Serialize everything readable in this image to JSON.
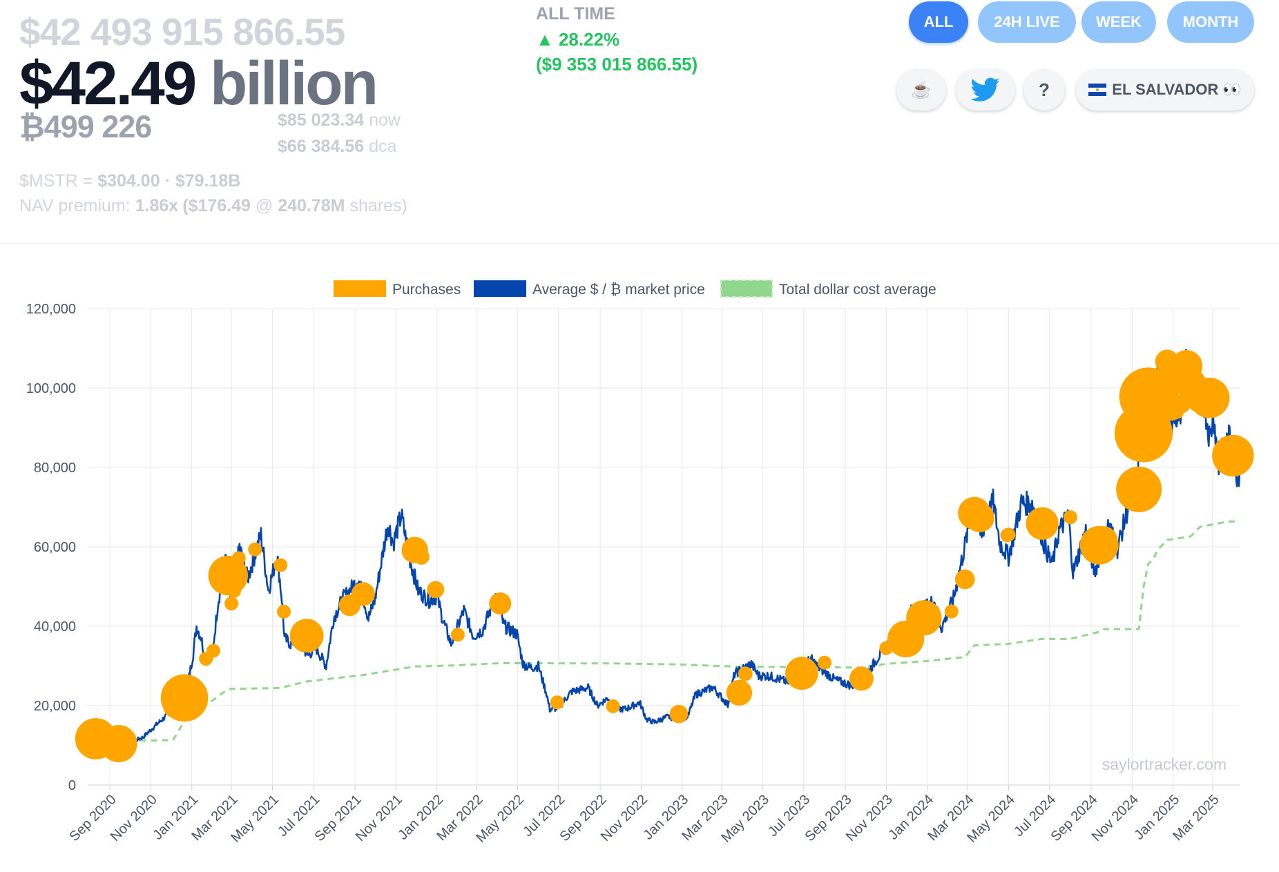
{
  "header": {
    "total_value_exact": "$42 493 915 866.55",
    "total_value_short_number": "$42.49",
    "total_value_short_unit": "billion",
    "btc_held": "₿499 226",
    "btc_price_now": "$85 023.34",
    "btc_price_now_label": "now",
    "btc_price_dca": "$66 384.56",
    "btc_price_dca_label": "dca",
    "mstr_label": "$MSTR =",
    "mstr_price": "$304.00",
    "mstr_sep": "·",
    "mstr_mcap": "$79.18B",
    "nav_label": "NAV premium:",
    "nav_premium": "1.86x",
    "nav_paren_open": "(",
    "nav_per_share": "$176.49",
    "nav_at": "@",
    "nav_shares": "240.78M",
    "nav_shares_label": "shares)"
  },
  "all_time": {
    "title": "ALL TIME",
    "arrow": "▲",
    "percent": "28.22%",
    "usd": "($9 353 015 866.55)"
  },
  "range_tabs": [
    {
      "label": "ALL",
      "active": true
    },
    {
      "label": "24H LIVE",
      "active": false
    },
    {
      "label": "WEEK",
      "active": false
    },
    {
      "label": "MONTH",
      "active": false
    }
  ],
  "links": {
    "coffee": "☕",
    "help": "?",
    "country_label": "EL SALVADOR",
    "eyes": "👀"
  },
  "colors": {
    "accent": "#3b82f6",
    "inactive_tab": "#93c5fd",
    "purchases": "#ffa500",
    "price_line": "#0645ad",
    "dca_line": "#90d68c",
    "gain": "#22c55e",
    "twitter": "#1d9bf0"
  },
  "chart_data": {
    "type": "line",
    "title": "",
    "watermark": "saylortracker.com",
    "legend": [
      "Purchases",
      "Average $ / ₿ market price",
      "Total dollar cost average"
    ],
    "legend_position": "top",
    "grid": true,
    "ylim": [
      0,
      120000
    ],
    "y_ticks": [
      "0",
      "20,000",
      "40,000",
      "60,000",
      "80,000",
      "100,000",
      "120,000"
    ],
    "x_range": [
      "2020-07-30",
      "2025-04-10"
    ],
    "x_ticks": [
      {
        "date": "2020-09-01",
        "label": "Sep 2020"
      },
      {
        "date": "2020-11-01",
        "label": "Nov 2020"
      },
      {
        "date": "2021-01-01",
        "label": "Jan 2021"
      },
      {
        "date": "2021-03-01",
        "label": "Mar 2021"
      },
      {
        "date": "2021-05-01",
        "label": "May 2021"
      },
      {
        "date": "2021-07-01",
        "label": "Jul 2021"
      },
      {
        "date": "2021-09-01",
        "label": "Sep 2021"
      },
      {
        "date": "2021-11-01",
        "label": "Nov 2021"
      },
      {
        "date": "2022-01-01",
        "label": "Jan 2022"
      },
      {
        "date": "2022-03-01",
        "label": "Mar 2022"
      },
      {
        "date": "2022-05-01",
        "label": "May 2022"
      },
      {
        "date": "2022-07-01",
        "label": "Jul 2022"
      },
      {
        "date": "2022-09-01",
        "label": "Sep 2022"
      },
      {
        "date": "2022-11-01",
        "label": "Nov 2022"
      },
      {
        "date": "2023-01-01",
        "label": "Jan 2023"
      },
      {
        "date": "2023-03-01",
        "label": "Mar 2023"
      },
      {
        "date": "2023-05-01",
        "label": "May 2023"
      },
      {
        "date": "2023-07-01",
        "label": "Jul 2023"
      },
      {
        "date": "2023-09-01",
        "label": "Sep 2023"
      },
      {
        "date": "2023-11-01",
        "label": "Nov 2023"
      },
      {
        "date": "2024-01-01",
        "label": "Jan 2024"
      },
      {
        "date": "2024-03-01",
        "label": "Mar 2024"
      },
      {
        "date": "2024-05-01",
        "label": "May 2024"
      },
      {
        "date": "2024-07-01",
        "label": "Jul 2024"
      },
      {
        "date": "2024-09-01",
        "label": "Sep 2024"
      },
      {
        "date": "2024-11-01",
        "label": "Nov 2024"
      },
      {
        "date": "2025-01-01",
        "label": "Jan 2025"
      },
      {
        "date": "2025-03-01",
        "label": "Mar 2025"
      }
    ],
    "price_series": [
      [
        "2020-09-10",
        10400
      ],
      [
        "2020-10-01",
        10700
      ],
      [
        "2020-10-20",
        12000
      ],
      [
        "2020-11-10",
        15300
      ],
      [
        "2020-11-28",
        18000
      ],
      [
        "2020-12-16",
        21000
      ],
      [
        "2020-12-24",
        23500
      ],
      [
        "2021-01-03",
        33000
      ],
      [
        "2021-01-08",
        40000
      ],
      [
        "2021-01-15",
        37000
      ],
      [
        "2021-01-22",
        31000
      ],
      [
        "2021-02-01",
        33500
      ],
      [
        "2021-02-09",
        46000
      ],
      [
        "2021-02-21",
        57000
      ],
      [
        "2021-02-28",
        45000
      ],
      [
        "2021-03-13",
        60000
      ],
      [
        "2021-03-25",
        52000
      ],
      [
        "2021-04-14",
        63000
      ],
      [
        "2021-04-25",
        49000
      ],
      [
        "2021-05-08",
        58000
      ],
      [
        "2021-05-15",
        47000
      ],
      [
        "2021-05-19",
        37000
      ],
      [
        "2021-05-28",
        35500
      ],
      [
        "2021-06-10",
        37000
      ],
      [
        "2021-06-22",
        32500
      ],
      [
        "2021-07-05",
        34500
      ],
      [
        "2021-07-20",
        30000
      ],
      [
        "2021-07-31",
        42000
      ],
      [
        "2021-08-14",
        47000
      ],
      [
        "2021-08-24",
        49000
      ],
      [
        "2021-09-06",
        52000
      ],
      [
        "2021-09-21",
        42000
      ],
      [
        "2021-10-01",
        47000
      ],
      [
        "2021-10-15",
        61000
      ],
      [
        "2021-10-20",
        66000
      ],
      [
        "2021-10-28",
        61000
      ],
      [
        "2021-11-09",
        68000
      ],
      [
        "2021-11-20",
        58000
      ],
      [
        "2021-12-04",
        49000
      ],
      [
        "2021-12-20",
        46500
      ],
      [
        "2022-01-01",
        47500
      ],
      [
        "2022-01-10",
        41500
      ],
      [
        "2022-01-22",
        35500
      ],
      [
        "2022-02-10",
        44000
      ],
      [
        "2022-02-24",
        37500
      ],
      [
        "2022-03-10",
        39000
      ],
      [
        "2022-03-29",
        47500
      ],
      [
        "2022-04-11",
        40000
      ],
      [
        "2022-04-30",
        38000
      ],
      [
        "2022-05-09",
        30500
      ],
      [
        "2022-05-20",
        29500
      ],
      [
        "2022-06-01",
        30000
      ],
      [
        "2022-06-13",
        23000
      ],
      [
        "2022-06-18",
        19000
      ],
      [
        "2022-07-01",
        19500
      ],
      [
        "2022-07-20",
        23500
      ],
      [
        "2022-08-14",
        24500
      ],
      [
        "2022-08-28",
        20000
      ],
      [
        "2022-09-13",
        22000
      ],
      [
        "2022-09-22",
        19000
      ],
      [
        "2022-10-10",
        19200
      ],
      [
        "2022-10-30",
        20800
      ],
      [
        "2022-11-09",
        16500
      ],
      [
        "2022-11-21",
        15800
      ],
      [
        "2022-12-10",
        17200
      ],
      [
        "2022-12-31",
        16500
      ],
      [
        "2023-01-10",
        17500
      ],
      [
        "2023-01-21",
        22800
      ],
      [
        "2023-02-16",
        24600
      ],
      [
        "2023-03-10",
        20200
      ],
      [
        "2023-03-20",
        28000
      ],
      [
        "2023-04-14",
        30500
      ],
      [
        "2023-04-25",
        27500
      ],
      [
        "2023-05-10",
        27500
      ],
      [
        "2023-06-10",
        25800
      ],
      [
        "2023-06-22",
        30000
      ],
      [
        "2023-07-13",
        31500
      ],
      [
        "2023-07-25",
        29300
      ],
      [
        "2023-08-17",
        26500
      ],
      [
        "2023-09-11",
        25000
      ],
      [
        "2023-10-01",
        27500
      ],
      [
        "2023-10-23",
        33000
      ],
      [
        "2023-11-10",
        37000
      ],
      [
        "2023-11-25",
        37800
      ],
      [
        "2023-12-08",
        44000
      ],
      [
        "2023-12-20",
        43500
      ],
      [
        "2024-01-11",
        46500
      ],
      [
        "2024-01-22",
        39500
      ],
      [
        "2024-02-10",
        47500
      ],
      [
        "2024-02-28",
        62000
      ],
      [
        "2024-03-14",
        73000
      ],
      [
        "2024-03-20",
        62500
      ],
      [
        "2024-04-08",
        71500
      ],
      [
        "2024-04-18",
        61000
      ],
      [
        "2024-05-01",
        57500
      ],
      [
        "2024-05-20",
        71000
      ],
      [
        "2024-06-06",
        70800
      ],
      [
        "2024-06-24",
        60000
      ],
      [
        "2024-07-05",
        55500
      ],
      [
        "2024-07-15",
        64000
      ],
      [
        "2024-07-29",
        68000
      ],
      [
        "2024-08-05",
        53500
      ],
      [
        "2024-08-24",
        64000
      ],
      [
        "2024-09-06",
        53500
      ],
      [
        "2024-09-27",
        65800
      ],
      [
        "2024-10-10",
        59500
      ],
      [
        "2024-10-29",
        72000
      ],
      [
        "2024-11-05",
        68500
      ],
      [
        "2024-11-12",
        88500
      ],
      [
        "2024-11-22",
        99000
      ],
      [
        "2024-11-26",
        91500
      ],
      [
        "2024-12-05",
        100000
      ],
      [
        "2024-12-17",
        106500
      ],
      [
        "2024-12-30",
        92500
      ],
      [
        "2025-01-13",
        94500
      ],
      [
        "2025-01-20",
        106000
      ],
      [
        "2025-02-03",
        98000
      ],
      [
        "2025-02-15",
        97500
      ],
      [
        "2025-02-25",
        87000
      ],
      [
        "2025-03-02",
        94000
      ],
      [
        "2025-03-10",
        79500
      ],
      [
        "2025-03-14",
        83500
      ],
      [
        "2025-03-26",
        87500
      ],
      [
        "2025-04-07",
        77500
      ],
      [
        "2025-04-10",
        79000
      ]
    ],
    "dca_series": [
      [
        "2020-08-11",
        11654
      ],
      [
        "2020-09-14",
        11111
      ],
      [
        "2020-12-04",
        11300
      ],
      [
        "2020-12-21",
        16100
      ],
      [
        "2021-02-24",
        24200
      ],
      [
        "2021-05-13",
        24450
      ],
      [
        "2021-06-21",
        26080
      ],
      [
        "2021-09-13",
        27713
      ],
      [
        "2021-11-29",
        29861
      ],
      [
        "2022-02-01",
        30159
      ],
      [
        "2022-04-05",
        30700
      ],
      [
        "2022-06-29",
        30664
      ],
      [
        "2022-09-20",
        30639
      ],
      [
        "2022-12-21",
        30397
      ],
      [
        "2023-03-27",
        29803
      ],
      [
        "2023-04-05",
        29794
      ],
      [
        "2023-06-28",
        29668
      ],
      [
        "2023-08-01",
        29672
      ],
      [
        "2023-09-25",
        29582
      ],
      [
        "2023-11-01",
        30530
      ],
      [
        "2023-12-27",
        31168
      ],
      [
        "2024-02-26",
        32220
      ],
      [
        "2024-03-11",
        35160
      ],
      [
        "2024-04-29",
        35524
      ],
      [
        "2024-06-20",
        36798
      ],
      [
        "2024-08-01",
        36821
      ],
      [
        "2024-09-13",
        38585
      ],
      [
        "2024-09-20",
        39266
      ],
      [
        "2024-11-11",
        39292
      ],
      [
        "2024-11-18",
        49874
      ],
      [
        "2024-11-25",
        55681
      ],
      [
        "2024-12-02",
        56761
      ],
      [
        "2024-12-09",
        59232
      ],
      [
        "2024-12-23",
        61725
      ],
      [
        "2025-01-27",
        62633
      ],
      [
        "2025-02-10",
        65033
      ],
      [
        "2025-03-24",
        66384
      ],
      [
        "2025-04-10",
        66384
      ]
    ],
    "purchases": [
      {
        "date": "2020-08-11",
        "price": 11654,
        "btc": 21454
      },
      {
        "date": "2020-09-14",
        "price": 10419,
        "btc": 16796
      },
      {
        "date": "2020-12-04",
        "price": 19427,
        "btc": 2574
      },
      {
        "date": "2020-12-21",
        "price": 21925,
        "btc": 29646
      },
      {
        "date": "2021-01-22",
        "price": 31808,
        "btc": 314
      },
      {
        "date": "2021-02-02",
        "price": 33810,
        "btc": 295
      },
      {
        "date": "2021-02-24",
        "price": 52765,
        "btc": 19452
      },
      {
        "date": "2021-03-01",
        "price": 45710,
        "btc": 328
      },
      {
        "date": "2021-03-05",
        "price": 48888,
        "btc": 205
      },
      {
        "date": "2021-03-12",
        "price": 57146,
        "btc": 262
      },
      {
        "date": "2021-04-05",
        "price": 59339,
        "btc": 253
      },
      {
        "date": "2021-05-13",
        "price": 55387,
        "btc": 271
      },
      {
        "date": "2021-05-18",
        "price": 43663,
        "btc": 229
      },
      {
        "date": "2021-06-21",
        "price": 37617,
        "btc": 13005
      },
      {
        "date": "2021-08-24",
        "price": 45294,
        "btc": 3907
      },
      {
        "date": "2021-09-13",
        "price": 48099,
        "btc": 5050
      },
      {
        "date": "2021-11-29",
        "price": 59187,
        "btc": 7002
      },
      {
        "date": "2021-12-09",
        "price": 57477,
        "btc": 1434
      },
      {
        "date": "2021-12-30",
        "price": 49229,
        "btc": 1914
      },
      {
        "date": "2022-02-01",
        "price": 37865,
        "btc": 660
      },
      {
        "date": "2022-04-05",
        "price": 45714,
        "btc": 4167
      },
      {
        "date": "2022-06-29",
        "price": 20817,
        "btc": 480
      },
      {
        "date": "2022-09-20",
        "price": 19851,
        "btc": 301
      },
      {
        "date": "2022-12-27",
        "price": 17871,
        "btc": 2395
      },
      {
        "date": "2023-03-27",
        "price": 23238,
        "btc": 6455
      },
      {
        "date": "2023-04-05",
        "price": 28016,
        "btc": 1045
      },
      {
        "date": "2023-06-28",
        "price": 28136,
        "btc": 12333
      },
      {
        "date": "2023-08-01",
        "price": 30835,
        "btc": 467
      },
      {
        "date": "2023-09-25",
        "price": 26797,
        "btc": 5445
      },
      {
        "date": "2023-11-01",
        "price": 34500,
        "btc": 155
      },
      {
        "date": "2023-11-30",
        "price": 36785,
        "btc": 16130
      },
      {
        "date": "2023-12-27",
        "price": 42110,
        "btc": 14620
      },
      {
        "date": "2024-02-06",
        "price": 43723,
        "btc": 850
      },
      {
        "date": "2024-02-26",
        "price": 51813,
        "btc": 3000
      },
      {
        "date": "2024-03-11",
        "price": 68477,
        "btc": 12000
      },
      {
        "date": "2024-03-19",
        "price": 67382,
        "btc": 9245
      },
      {
        "date": "2024-04-29",
        "price": 62912,
        "btc": 122
      },
      {
        "date": "2024-05-01",
        "price": 63100,
        "btc": 164
      },
      {
        "date": "2024-06-20",
        "price": 65883,
        "btc": 11931
      },
      {
        "date": "2024-08-01",
        "price": 67455,
        "btc": 169
      },
      {
        "date": "2024-09-13",
        "price": 60408,
        "btc": 18300
      },
      {
        "date": "2024-09-20",
        "price": 61750,
        "btc": 7420
      },
      {
        "date": "2024-11-11",
        "price": 74463,
        "btc": 27200
      },
      {
        "date": "2024-11-18",
        "price": 88627,
        "btc": 51780
      },
      {
        "date": "2024-11-25",
        "price": 97862,
        "btc": 55500
      },
      {
        "date": "2024-12-02",
        "price": 95976,
        "btc": 15400
      },
      {
        "date": "2024-12-09",
        "price": 98783,
        "btc": 21550
      },
      {
        "date": "2024-12-16",
        "price": 100386,
        "btc": 15350
      },
      {
        "date": "2024-12-23",
        "price": 106662,
        "btc": 5262
      },
      {
        "date": "2024-12-30",
        "price": 94004,
        "btc": 2138
      },
      {
        "date": "2025-01-06",
        "price": 94004,
        "btc": 1070
      },
      {
        "date": "2025-01-13",
        "price": 95972,
        "btc": 2530
      },
      {
        "date": "2025-01-21",
        "price": 105596,
        "btc": 11000
      },
      {
        "date": "2025-01-27",
        "price": 101191,
        "btc": 10107
      },
      {
        "date": "2025-02-10",
        "price": 97255,
        "btc": 7633
      },
      {
        "date": "2025-02-24",
        "price": 97514,
        "btc": 20356
      },
      {
        "date": "2025-03-17",
        "price": 82981,
        "btc": 130
      },
      {
        "date": "2025-03-24",
        "price": 84529,
        "btc": 6911
      },
      {
        "date": "2025-03-31",
        "price": 82981,
        "btc": 22048
      }
    ]
  }
}
